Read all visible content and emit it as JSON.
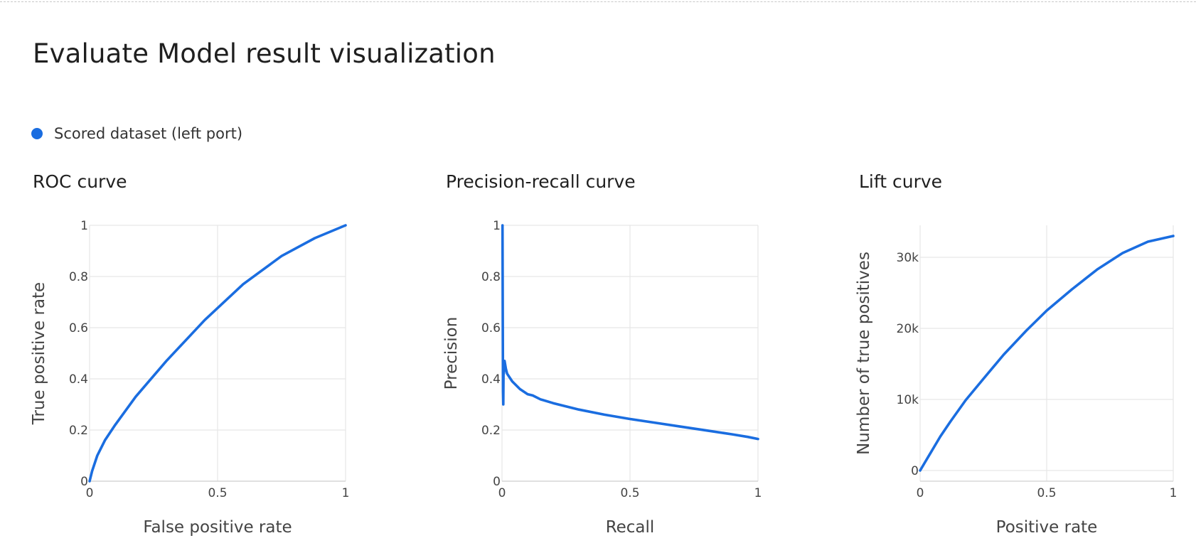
{
  "page": {
    "title": "Evaluate Model result visualization"
  },
  "legend": {
    "label": "Scored dataset (left port)",
    "color": "#1a6de0"
  },
  "chart_data": [
    {
      "type": "line",
      "title": "ROC curve",
      "xlabel": "False positive rate",
      "ylabel": "True positive rate",
      "xlim": [
        0,
        1
      ],
      "ylim": [
        0,
        1
      ],
      "xticks": [
        {
          "value": 0,
          "label": "0"
        },
        {
          "value": 0.5,
          "label": "0.5"
        },
        {
          "value": 1,
          "label": "1"
        }
      ],
      "yticks": [
        {
          "value": 0,
          "label": "0"
        },
        {
          "value": 0.2,
          "label": "0.2"
        },
        {
          "value": 0.4,
          "label": "0.4"
        },
        {
          "value": 0.6,
          "label": "0.6"
        },
        {
          "value": 0.8,
          "label": "0.8"
        },
        {
          "value": 1,
          "label": "1"
        }
      ],
      "grid": true,
      "series": [
        {
          "name": "Scored dataset (left port)",
          "color": "#1a6de0",
          "x": [
            0,
            0.01,
            0.03,
            0.06,
            0.1,
            0.18,
            0.3,
            0.45,
            0.6,
            0.75,
            0.88,
            1.0
          ],
          "y": [
            0,
            0.04,
            0.1,
            0.16,
            0.22,
            0.33,
            0.47,
            0.63,
            0.77,
            0.88,
            0.95,
            1.0
          ]
        }
      ]
    },
    {
      "type": "line",
      "title": "Precision-recall curve",
      "xlabel": "Recall",
      "ylabel": "Precision",
      "xlim": [
        0,
        1
      ],
      "ylim": [
        0,
        1
      ],
      "xticks": [
        {
          "value": 0,
          "label": "0"
        },
        {
          "value": 0.5,
          "label": "0.5"
        },
        {
          "value": 1,
          "label": "1"
        }
      ],
      "yticks": [
        {
          "value": 0,
          "label": "0"
        },
        {
          "value": 0.2,
          "label": "0.2"
        },
        {
          "value": 0.4,
          "label": "0.4"
        },
        {
          "value": 0.6,
          "label": "0.6"
        },
        {
          "value": 0.8,
          "label": "0.8"
        },
        {
          "value": 1,
          "label": "1"
        }
      ],
      "grid": true,
      "series": [
        {
          "name": "Scored dataset (left port)",
          "color": "#1a6de0",
          "x": [
            0.002,
            0.003,
            0.004,
            0.005,
            0.006,
            0.007,
            0.01,
            0.015,
            0.02,
            0.04,
            0.07,
            0.1,
            0.12,
            0.15,
            0.2,
            0.3,
            0.4,
            0.5,
            0.6,
            0.7,
            0.8,
            0.9,
            0.96,
            1.0
          ],
          "y": [
            1.0,
            0.6,
            0.35,
            0.3,
            0.45,
            0.42,
            0.47,
            0.44,
            0.42,
            0.39,
            0.36,
            0.34,
            0.335,
            0.32,
            0.305,
            0.28,
            0.26,
            0.243,
            0.228,
            0.213,
            0.198,
            0.183,
            0.173,
            0.165
          ]
        }
      ]
    },
    {
      "type": "line",
      "title": "Lift curve",
      "xlabel": "Positive rate",
      "ylabel": "Number of true positives",
      "xlim": [
        0,
        1
      ],
      "ylim": [
        -1500,
        34500
      ],
      "xticks": [
        {
          "value": 0,
          "label": "0"
        },
        {
          "value": 0.5,
          "label": "0.5"
        },
        {
          "value": 1,
          "label": "1"
        }
      ],
      "yticks": [
        {
          "value": 0,
          "label": "0"
        },
        {
          "value": 10000,
          "label": "10k"
        },
        {
          "value": 20000,
          "label": "20k"
        },
        {
          "value": 30000,
          "label": "30k"
        }
      ],
      "grid": true,
      "series": [
        {
          "name": "Scored dataset (left port)",
          "color": "#1a6de0",
          "x": [
            0,
            0.02,
            0.05,
            0.08,
            0.12,
            0.18,
            0.25,
            0.33,
            0.42,
            0.5,
            0.6,
            0.7,
            0.8,
            0.9,
            1.0
          ],
          "y": [
            0,
            1200,
            3000,
            4800,
            6900,
            9900,
            12900,
            16300,
            19700,
            22500,
            25500,
            28300,
            30600,
            32200,
            33000
          ]
        }
      ]
    }
  ]
}
